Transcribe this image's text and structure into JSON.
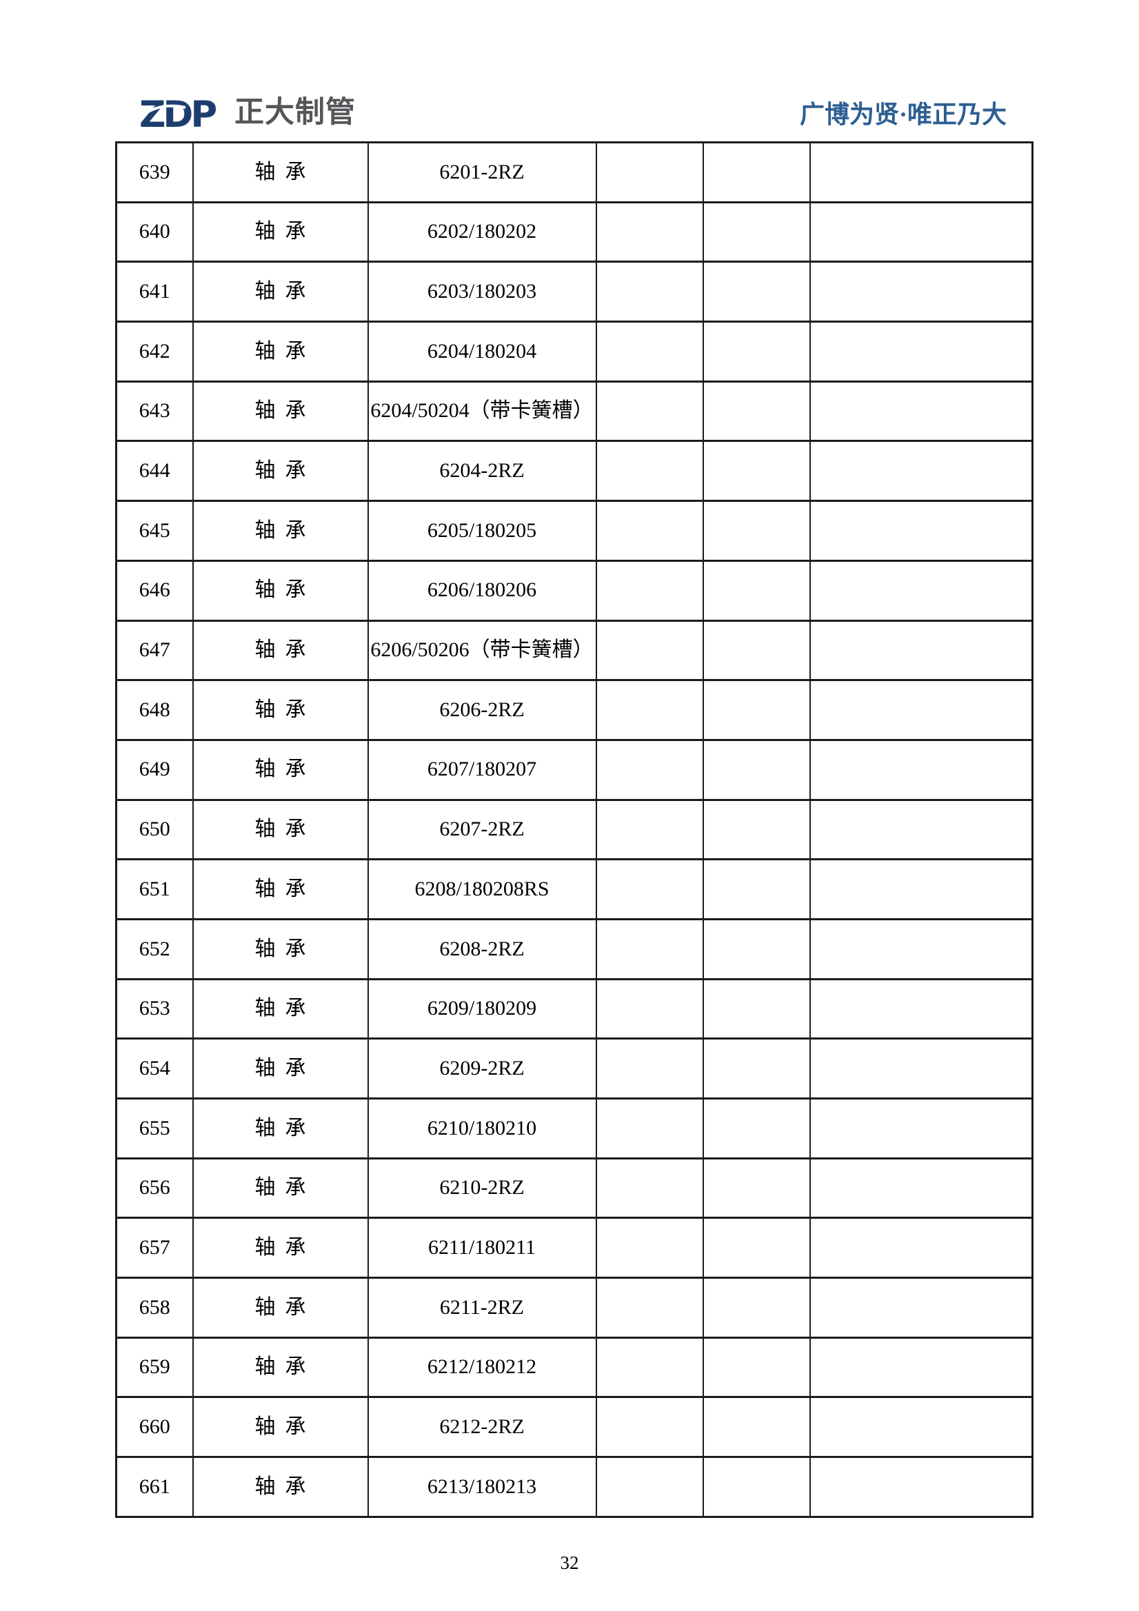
{
  "header": {
    "logo_text": "ZDP",
    "company_name": "正大制管",
    "slogan": "广博为贤·唯正乃大"
  },
  "table": {
    "rows": [
      {
        "no": "639",
        "name": "轴承",
        "spec": "6201-2RZ"
      },
      {
        "no": "640",
        "name": "轴承",
        "spec": "6202/180202"
      },
      {
        "no": "641",
        "name": "轴承",
        "spec": "6203/180203"
      },
      {
        "no": "642",
        "name": "轴承",
        "spec": "6204/180204"
      },
      {
        "no": "643",
        "name": "轴承",
        "spec": "6204/50204（带卡簧槽）"
      },
      {
        "no": "644",
        "name": "轴承",
        "spec": "6204-2RZ"
      },
      {
        "no": "645",
        "name": "轴承",
        "spec": "6205/180205"
      },
      {
        "no": "646",
        "name": "轴承",
        "spec": "6206/180206"
      },
      {
        "no": "647",
        "name": "轴承",
        "spec": "6206/50206（带卡簧槽）"
      },
      {
        "no": "648",
        "name": "轴承",
        "spec": "6206-2RZ"
      },
      {
        "no": "649",
        "name": "轴承",
        "spec": "6207/180207"
      },
      {
        "no": "650",
        "name": "轴承",
        "spec": "6207-2RZ"
      },
      {
        "no": "651",
        "name": "轴承",
        "spec": "6208/180208RS"
      },
      {
        "no": "652",
        "name": "轴承",
        "spec": "6208-2RZ"
      },
      {
        "no": "653",
        "name": "轴承",
        "spec": "6209/180209"
      },
      {
        "no": "654",
        "name": "轴承",
        "spec": "6209-2RZ"
      },
      {
        "no": "655",
        "name": "轴承",
        "spec": "6210/180210"
      },
      {
        "no": "656",
        "name": "轴承",
        "spec": "6210-2RZ"
      },
      {
        "no": "657",
        "name": "轴承",
        "spec": "6211/180211"
      },
      {
        "no": "658",
        "name": "轴承",
        "spec": "6211-2RZ"
      },
      {
        "no": "659",
        "name": "轴承",
        "spec": "6212/180212"
      },
      {
        "no": "660",
        "name": "轴承",
        "spec": "6212-2RZ"
      },
      {
        "no": "661",
        "name": "轴承",
        "spec": "6213/180213"
      }
    ]
  },
  "footer": {
    "page_number": "32"
  },
  "colors": {
    "logo_navy": "#1d3d6e",
    "company_gray": "#55565a",
    "slogan_blue": "#2d5e92",
    "table_border": "#1b1b1b"
  }
}
